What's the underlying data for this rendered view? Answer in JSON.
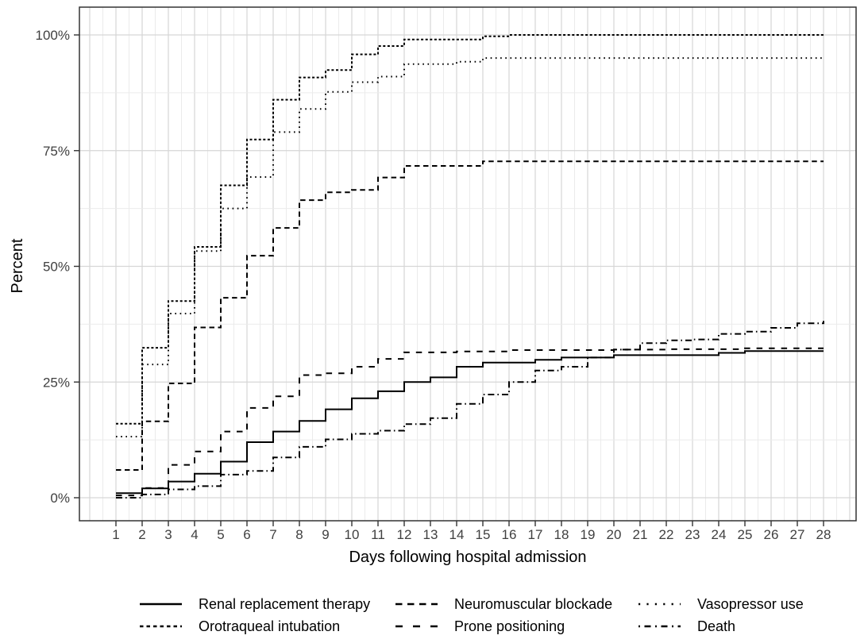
{
  "chart_data": {
    "type": "line",
    "subtype": "step-function-cumulative-incidence",
    "title": "",
    "xlabel": "Days following hospital admission",
    "ylabel": "Percent",
    "x": [
      1,
      2,
      3,
      4,
      5,
      6,
      7,
      8,
      9,
      10,
      11,
      12,
      13,
      14,
      15,
      16,
      17,
      18,
      19,
      20,
      21,
      22,
      23,
      24,
      25,
      26,
      27,
      28
    ],
    "x_tick_labels": [
      "1",
      "2",
      "3",
      "4",
      "5",
      "6",
      "7",
      "8",
      "9",
      "10",
      "11",
      "12",
      "13",
      "14",
      "15",
      "16",
      "17",
      "18",
      "19",
      "20",
      "21",
      "22",
      "23",
      "24",
      "25",
      "26",
      "27",
      "28"
    ],
    "y_ticks": [
      0,
      25,
      50,
      75,
      100
    ],
    "y_tick_labels": [
      "0%",
      "25%",
      "50%",
      "75%",
      "100%"
    ],
    "ylim": [
      0,
      100
    ],
    "grid": "major and minor, light gray on white, black panel border",
    "legend_position": "bottom",
    "line_color": "#000000",
    "series": [
      {
        "name": "renal",
        "label": "Renal replacement therapy",
        "line_style": "solid",
        "values": [
          1.0,
          2.0,
          3.5,
          5.2,
          7.8,
          12.0,
          14.3,
          16.6,
          19.1,
          21.5,
          23.0,
          25.0,
          26.0,
          28.3,
          29.2,
          29.2,
          29.8,
          30.3,
          30.3,
          30.8,
          30.8,
          30.8,
          30.8,
          31.3,
          31.7,
          31.7,
          31.7,
          31.7
        ]
      },
      {
        "name": "intubation",
        "label": "Orotraqueal intubation",
        "line_style": "dense-dotted",
        "values": [
          16.0,
          32.4,
          42.5,
          54.2,
          67.5,
          77.4,
          86.0,
          90.8,
          92.4,
          95.8,
          97.6,
          99.0,
          99.0,
          99.0,
          99.7,
          100,
          100,
          100,
          100,
          100,
          100,
          100,
          100,
          100,
          100,
          100,
          100,
          100
        ]
      },
      {
        "name": "neuromuscular",
        "label": "Neuromuscular blockade",
        "line_style": "dashed",
        "values": [
          6.0,
          16.5,
          24.7,
          36.8,
          43.2,
          52.3,
          58.3,
          64.3,
          66.0,
          66.5,
          69.2,
          71.7,
          71.7,
          71.7,
          72.7,
          72.7,
          72.7,
          72.7,
          72.7,
          72.7,
          72.7,
          72.7,
          72.7,
          72.7,
          72.7,
          72.7,
          72.7,
          72.7
        ]
      },
      {
        "name": "prone",
        "label": "Prone positioning",
        "line_style": "long-dashed",
        "values": [
          0.5,
          2.1,
          7.1,
          10.0,
          14.3,
          19.4,
          21.9,
          26.5,
          26.9,
          28.3,
          30.0,
          31.4,
          31.4,
          31.6,
          31.6,
          31.9,
          31.9,
          31.9,
          31.9,
          32.0,
          32.0,
          32.1,
          32.1,
          32.1,
          32.3,
          32.3,
          32.3,
          32.3
        ]
      },
      {
        "name": "vasopressor",
        "label": "Vasopressor use",
        "line_style": "dotted",
        "values": [
          13.2,
          28.8,
          39.8,
          53.3,
          62.5,
          69.3,
          79.0,
          84.0,
          87.7,
          89.8,
          91.0,
          93.7,
          93.7,
          94.2,
          95.0,
          95.0,
          95.0,
          95.0,
          95.0,
          95.0,
          95.0,
          95.0,
          95.0,
          95.0,
          95.0,
          95.0,
          95.0,
          95.0
        ]
      },
      {
        "name": "death",
        "label": "Death",
        "line_style": "dash-dot",
        "values": [
          0.0,
          0.7,
          1.8,
          2.5,
          5.0,
          5.8,
          8.7,
          11.0,
          12.6,
          13.8,
          14.5,
          15.9,
          17.2,
          20.3,
          22.3,
          25.0,
          27.5,
          28.3,
          30.3,
          32.0,
          33.4,
          34.0,
          34.2,
          35.4,
          35.9,
          36.7,
          37.7,
          38.2
        ]
      }
    ]
  }
}
